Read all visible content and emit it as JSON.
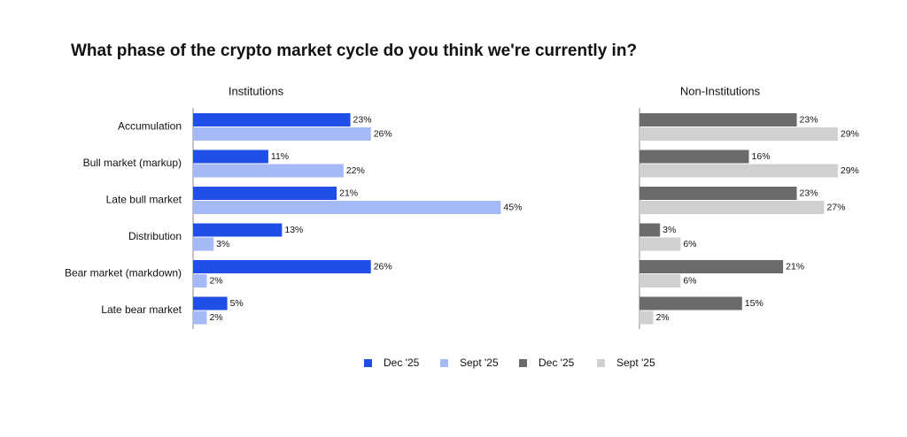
{
  "title": "What phase of the crypto market cycle do you think we're currently in?",
  "chart_data": [
    {
      "type": "bar",
      "orientation": "horizontal",
      "title": "Institutions",
      "categories": [
        "Accumulation",
        "Bull market (markup)",
        "Late bull market",
        "Distribution",
        "Bear market (markdown)",
        "Late bear market"
      ],
      "series": [
        {
          "name": "Dec '25",
          "color": "#1f4fe6",
          "values": [
            23,
            11,
            21,
            13,
            26,
            5
          ],
          "value_labels": [
            "23%",
            "11%",
            "21%",
            "13%",
            "26%",
            "5%"
          ]
        },
        {
          "name": "Sept '25",
          "color": "#a4b9f6",
          "values": [
            26,
            22,
            45,
            3,
            2,
            2
          ],
          "value_labels": [
            "26%",
            "22%",
            "45%",
            "3%",
            "2%",
            "2%"
          ]
        }
      ]
    },
    {
      "type": "bar",
      "orientation": "horizontal",
      "title": "Non-Institutions",
      "series": [
        {
          "name": "Dec '25",
          "color": "#6b6b6b",
          "values": [
            23,
            16,
            23,
            3,
            21,
            15
          ],
          "value_labels": [
            "23%",
            "16%",
            "23%",
            "3%",
            "21%",
            "15%"
          ]
        },
        {
          "name": "Sept '25",
          "color": "#d0d0d0",
          "values": [
            29,
            29,
            27,
            6,
            6,
            2
          ],
          "value_labels": [
            "29%",
            "29%",
            "27%",
            "6%",
            "6%",
            "2%"
          ]
        }
      ]
    }
  ]
}
